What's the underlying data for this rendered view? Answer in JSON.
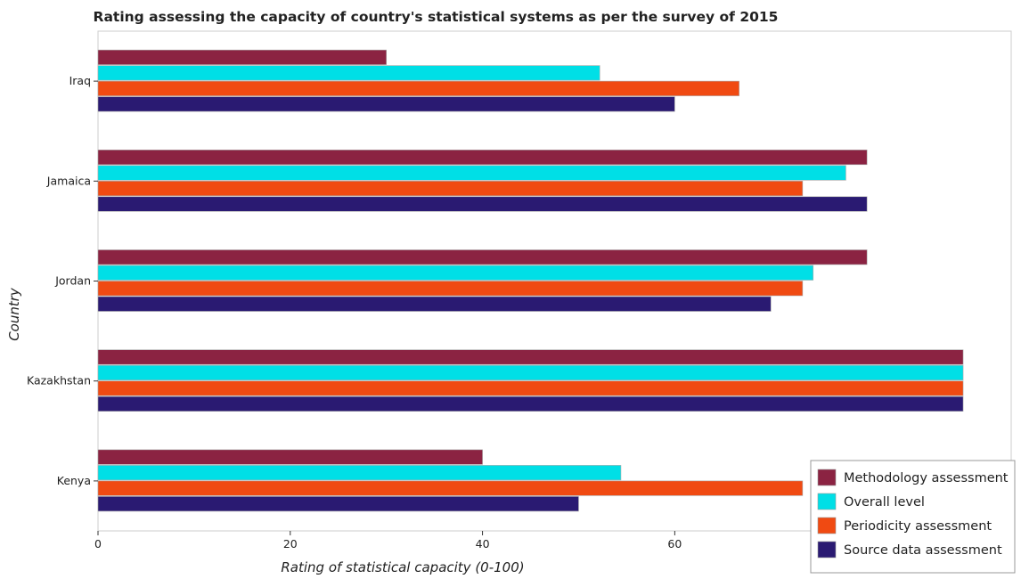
{
  "chart_data": {
    "type": "bar",
    "orientation": "horizontal",
    "title": "Rating assessing the capacity of country's statistical systems as per the survey of 2015",
    "xlabel": "Rating of statistical capacity (0-100)",
    "ylabel": "Country",
    "xlim": [
      0,
      95
    ],
    "xticks": [
      0,
      20,
      40,
      60,
      80
    ],
    "categories": [
      "Iraq",
      "Jamaica",
      "Jordan",
      "Kazakhstan",
      "Kenya"
    ],
    "series": [
      {
        "name": "Methodology assessment",
        "color": "#8b2342",
        "values": [
          30,
          80,
          80,
          90,
          40
        ]
      },
      {
        "name": "Overall level",
        "color": "#00dfe6",
        "values": [
          52.2,
          77.8,
          74.4,
          90,
          54.4
        ]
      },
      {
        "name": "Periodicity assessment",
        "color": "#f04a12",
        "values": [
          66.7,
          73.3,
          73.3,
          90,
          73.3
        ]
      },
      {
        "name": "Source data assessment",
        "color": "#2a1a72",
        "values": [
          60,
          80,
          70,
          90,
          50
        ]
      }
    ],
    "legend_position": "bottom-right",
    "grid": false
  }
}
